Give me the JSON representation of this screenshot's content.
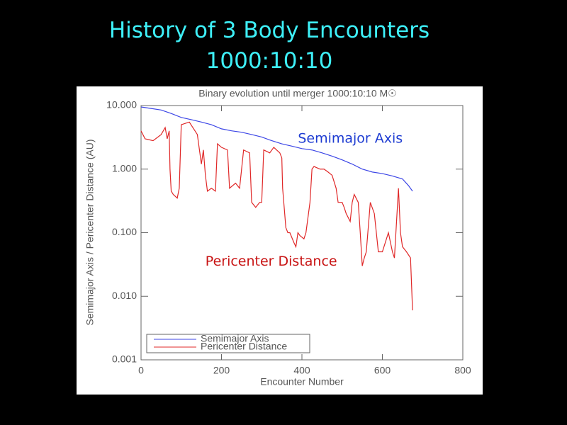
{
  "slide_title": "History of 3 Body Encounters",
  "slide_subtitle": "1000:10:10",
  "chart_data": {
    "type": "line",
    "title": "Binary evolution until merger 1000:10:10 M☉",
    "xlabel": "Encounter Number",
    "ylabel": "Semimajor Axis / Pericenter Distance (AU)",
    "xlim": [
      0,
      800
    ],
    "xticks": [
      0,
      200,
      400,
      600,
      800
    ],
    "ylim": [
      0.001,
      10
    ],
    "yscale": "log",
    "yticks": [
      {
        "value": 0.001,
        "label": "0.001"
      },
      {
        "value": 0.01,
        "label": "0.010"
      },
      {
        "value": 0.1,
        "label": "0.100"
      },
      {
        "value": 1,
        "label": "1.000"
      },
      {
        "value": 10,
        "label": "10.000"
      }
    ],
    "legend": "lower left",
    "annotations": [
      {
        "text": "Semimajor Axis",
        "color": "#1e3cd2",
        "x": 390,
        "y": 3
      },
      {
        "text": "Pericenter Distance",
        "color": "#c81414",
        "x": 160,
        "y": 0.035
      }
    ],
    "series": [
      {
        "name": "Semimajor Axis",
        "color": "#3c46e6",
        "x": [
          0,
          25,
          50,
          75,
          100,
          125,
          150,
          175,
          200,
          225,
          250,
          275,
          300,
          325,
          350,
          375,
          400,
          425,
          450,
          475,
          500,
          525,
          550,
          575,
          600,
          625,
          650,
          665,
          675
        ],
        "values": [
          9.5,
          9.0,
          8.5,
          7.5,
          6.5,
          6.0,
          5.5,
          5.0,
          4.3,
          4.0,
          3.8,
          3.5,
          3.2,
          2.8,
          2.5,
          2.3,
          2.1,
          2.0,
          1.8,
          1.6,
          1.4,
          1.2,
          1.0,
          0.9,
          0.85,
          0.78,
          0.7,
          0.55,
          0.45
        ]
      },
      {
        "name": "Pericenter Distance",
        "color": "#e02828",
        "x": [
          0,
          10,
          30,
          50,
          60,
          65,
          70,
          72,
          75,
          80,
          90,
          95,
          100,
          120,
          140,
          150,
          155,
          160,
          165,
          175,
          185,
          190,
          200,
          215,
          220,
          235,
          245,
          255,
          270,
          275,
          285,
          295,
          300,
          305,
          320,
          330,
          345,
          350,
          352,
          360,
          365,
          370,
          380,
          385,
          390,
          395,
          405,
          410,
          420,
          425,
          430,
          445,
          455,
          465,
          475,
          485,
          490,
          500,
          505,
          510,
          520,
          525,
          530,
          540,
          545,
          550,
          555,
          560,
          570,
          580,
          590,
          600,
          615,
          625,
          630,
          640,
          645,
          650,
          660,
          670,
          675
        ],
        "values": [
          4.0,
          3.0,
          2.8,
          3.5,
          4.5,
          3.0,
          4.0,
          1.0,
          0.45,
          0.4,
          0.35,
          0.5,
          5.0,
          5.5,
          3.5,
          1.2,
          2.0,
          0.8,
          0.45,
          0.5,
          0.45,
          2.5,
          2.2,
          2.0,
          0.5,
          0.6,
          0.5,
          2.0,
          1.8,
          0.3,
          0.25,
          0.3,
          0.3,
          2.0,
          1.8,
          2.2,
          1.8,
          1.5,
          0.5,
          0.12,
          0.1,
          0.1,
          0.07,
          0.06,
          0.1,
          0.09,
          0.08,
          0.1,
          0.3,
          1.0,
          1.1,
          1.0,
          1.0,
          0.9,
          0.8,
          0.5,
          0.3,
          0.3,
          0.25,
          0.2,
          0.15,
          0.3,
          0.4,
          0.3,
          0.1,
          0.03,
          0.04,
          0.05,
          0.3,
          0.2,
          0.05,
          0.05,
          0.1,
          0.05,
          0.04,
          0.5,
          0.1,
          0.06,
          0.05,
          0.04,
          0.006
        ]
      }
    ]
  }
}
